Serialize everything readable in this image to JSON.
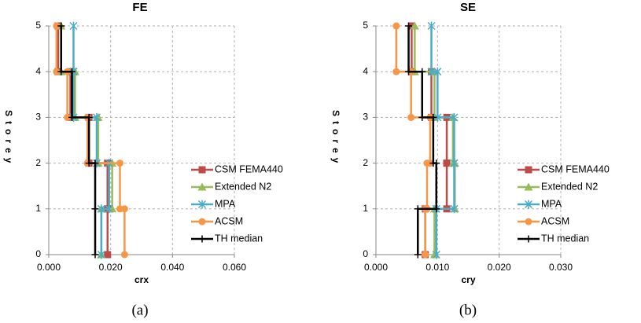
{
  "chart_data": [
    {
      "type": "line",
      "title": "FE",
      "x_label": "crx",
      "y_label": "Storey",
      "caption": "(a)",
      "y": [
        0,
        1,
        1,
        2,
        2,
        3,
        3,
        4,
        4,
        5
      ],
      "xlim": [
        0,
        0.06
      ],
      "xticks": [
        {
          "value": 0,
          "label": "0.000"
        },
        {
          "value": 0.02,
          "label": "0.020"
        },
        {
          "value": 0.04,
          "label": "0.040"
        },
        {
          "value": 0.06,
          "label": "0.060"
        }
      ],
      "ylim": [
        0,
        5
      ],
      "yticks": [
        0,
        1,
        2,
        3,
        4,
        5
      ],
      "grid": true,
      "legend": "right",
      "series": [
        {
          "name": "CSM FEMA440",
          "color": "#be4b48",
          "marker": "square",
          "values": [
            0.019,
            0.019,
            0.019,
            0.019,
            0.013,
            0.013,
            0.007,
            0.007,
            0.003,
            0.003
          ]
        },
        {
          "name": "Extended N2",
          "color": "#9bbb59",
          "marker": "triangle",
          "values": [
            0.017,
            0.017,
            0.0205,
            0.0205,
            0.016,
            0.016,
            0.0085,
            0.0085,
            0.004,
            0.004
          ]
        },
        {
          "name": "MPA",
          "color": "#4bacc6",
          "marker": "star",
          "values": [
            0.017,
            0.017,
            0.0195,
            0.0195,
            0.0155,
            0.0155,
            0.008,
            0.008,
            0.008,
            0.008
          ]
        },
        {
          "name": "ACSM",
          "color": "#f79646",
          "marker": "circle",
          "values": [
            0.0245,
            0.0245,
            0.023,
            0.023,
            0.0125,
            0.0125,
            0.006,
            0.006,
            0.0025,
            0.0025
          ]
        },
        {
          "name": "TH median",
          "color": "#000000",
          "marker": "plus",
          "values": [
            0.015,
            0.015,
            0.015,
            0.015,
            0.013,
            0.013,
            0.0075,
            0.0075,
            0.004,
            0.004
          ]
        }
      ]
    },
    {
      "type": "line",
      "title": "SE",
      "x_label": "cry",
      "y_label": "Storey",
      "caption": "(b)",
      "y": [
        0,
        1,
        1,
        2,
        2,
        3,
        3,
        4,
        4,
        5
      ],
      "xlim": [
        0,
        0.03
      ],
      "xticks": [
        {
          "value": 0,
          "label": "0.000"
        },
        {
          "value": 0.01,
          "label": "0.010"
        },
        {
          "value": 0.02,
          "label": "0.020"
        },
        {
          "value": 0.03,
          "label": "0.030"
        }
      ],
      "ylim": [
        0,
        5
      ],
      "yticks": [
        0,
        1,
        2,
        3,
        4,
        5
      ],
      "grid": true,
      "legend": "right",
      "series": [
        {
          "name": "CSM FEMA440",
          "color": "#be4b48",
          "marker": "square",
          "values": [
            0.008,
            0.008,
            0.0115,
            0.0115,
            0.0115,
            0.0115,
            0.009,
            0.009,
            0.0058,
            0.0058
          ]
        },
        {
          "name": "Extended N2",
          "color": "#9bbb59",
          "marker": "triangle",
          "values": [
            0.0095,
            0.0095,
            0.0128,
            0.0128,
            0.0125,
            0.0125,
            0.0095,
            0.0095,
            0.0063,
            0.0063
          ]
        },
        {
          "name": "MPA",
          "color": "#4bacc6",
          "marker": "star",
          "values": [
            0.0098,
            0.0098,
            0.0127,
            0.0127,
            0.0127,
            0.0127,
            0.01,
            0.01,
            0.009,
            0.009
          ]
        },
        {
          "name": "ACSM",
          "color": "#f79646",
          "marker": "circle",
          "values": [
            0.008,
            0.008,
            0.0083,
            0.0083,
            0.0088,
            0.0088,
            0.0057,
            0.0057,
            0.0033,
            0.0033
          ]
        },
        {
          "name": "TH median",
          "color": "#000000",
          "marker": "plus",
          "values": [
            0.0068,
            0.0068,
            0.0098,
            0.0098,
            0.0093,
            0.0093,
            0.0075,
            0.0075,
            0.0053,
            0.0053
          ]
        }
      ]
    }
  ]
}
